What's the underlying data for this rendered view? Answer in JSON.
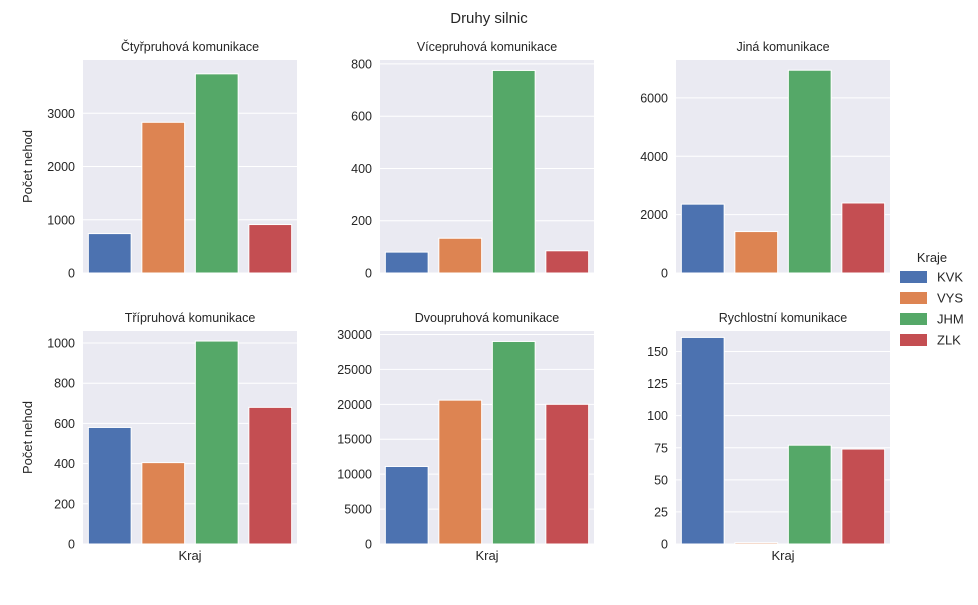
{
  "figure": {
    "suptitle": "Druhy silnic",
    "legend": {
      "title": "Kraje",
      "placement": "right",
      "items": [
        "KVK",
        "VYS",
        "JHM",
        "ZLK"
      ]
    },
    "colors": {
      "KVK": "#4c72b0",
      "VYS": "#dd8452",
      "JHM": "#55a868",
      "ZLK": "#c44e52"
    },
    "axes_background": "#eaeaf2",
    "grid_color": "#ffffff"
  },
  "chart_data": [
    {
      "type": "bar",
      "title": "Čtyřpruhová komunikace",
      "categories": [
        "KVK",
        "VYS",
        "JHM",
        "ZLK"
      ],
      "values": [
        740,
        2830,
        3740,
        910
      ],
      "ylim": [
        0,
        4000
      ],
      "yticks": [
        0,
        1000,
        2000,
        3000
      ],
      "ytick_labels": [
        "0",
        "1000",
        "2000",
        "3000"
      ],
      "ylabel": "Počet nehod",
      "xlabel": "",
      "grid": true
    },
    {
      "type": "bar",
      "title": "Vícepruhová komunikace",
      "categories": [
        "KVK",
        "VYS",
        "JHM",
        "ZLK"
      ],
      "values": [
        80,
        133,
        775,
        85
      ],
      "ylim": [
        0,
        815
      ],
      "yticks": [
        0,
        200,
        400,
        600,
        800
      ],
      "ytick_labels": [
        "0",
        "200",
        "400",
        "600",
        "800"
      ],
      "ylabel": "",
      "xlabel": "",
      "grid": true
    },
    {
      "type": "bar",
      "title": "Jiná komunikace",
      "categories": [
        "KVK",
        "VYS",
        "JHM",
        "ZLK"
      ],
      "values": [
        2360,
        1420,
        6950,
        2400
      ],
      "ylim": [
        0,
        7300
      ],
      "yticks": [
        0,
        2000,
        4000,
        6000
      ],
      "ytick_labels": [
        "0",
        "2000",
        "4000",
        "6000"
      ],
      "ylabel": "",
      "xlabel": "",
      "grid": true
    },
    {
      "type": "bar",
      "title": "Třípruhová komunikace",
      "categories": [
        "KVK",
        "VYS",
        "JHM",
        "ZLK"
      ],
      "values": [
        580,
        405,
        1010,
        680
      ],
      "ylim": [
        0,
        1060
      ],
      "yticks": [
        0,
        200,
        400,
        600,
        800,
        1000
      ],
      "ytick_labels": [
        "0",
        "200",
        "400",
        "600",
        "800",
        "1000"
      ],
      "ylabel": "Počet nehod",
      "xlabel": "Kraj",
      "grid": true
    },
    {
      "type": "bar",
      "title": "Dvoupruhová komunikace",
      "categories": [
        "KVK",
        "VYS",
        "JHM",
        "ZLK"
      ],
      "values": [
        11100,
        20600,
        29000,
        20000
      ],
      "ylim": [
        0,
        30500
      ],
      "yticks": [
        0,
        5000,
        10000,
        15000,
        20000,
        25000,
        30000
      ],
      "ytick_labels": [
        "0",
        "5000",
        "10000",
        "15000",
        "20000",
        "25000",
        "30000"
      ],
      "ylabel": "",
      "xlabel": "Kraj",
      "grid": true
    },
    {
      "type": "bar",
      "title": "Rychlostní komunikace",
      "categories": [
        "KVK",
        "VYS",
        "JHM",
        "ZLK"
      ],
      "values": [
        161,
        1,
        77,
        74
      ],
      "ylim": [
        0,
        166
      ],
      "yticks": [
        0,
        25,
        50,
        75,
        100,
        125,
        150
      ],
      "ytick_labels": [
        "0",
        "25",
        "50",
        "75",
        "100",
        "125",
        "150"
      ],
      "ylabel": "",
      "xlabel": "Kraj",
      "grid": true
    }
  ]
}
